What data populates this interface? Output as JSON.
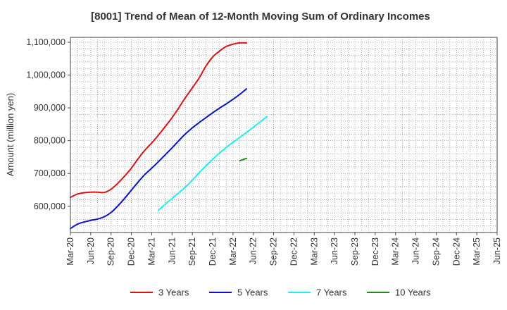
{
  "chart_data": {
    "type": "line",
    "title": "[8001]  Trend of Mean of 12-Month Moving Sum of Ordinary Incomes",
    "xlabel": "",
    "ylabel": "Amount (million yen)",
    "ylim": [
      520000,
      1115000
    ],
    "yticks": [
      600000,
      700000,
      800000,
      900000,
      1000000,
      1100000
    ],
    "ytick_labels": [
      "600,000",
      "700,000",
      "800,000",
      "900,000",
      "1,000,000",
      "1,100,000"
    ],
    "x_tick_labels": [
      "Mar-20",
      "Jun-20",
      "Sep-20",
      "Dec-20",
      "Mar-21",
      "Jun-21",
      "Sep-21",
      "Dec-21",
      "Mar-22",
      "Jun-22",
      "Sep-22",
      "Dec-22",
      "Mar-23",
      "Jun-23",
      "Sep-23",
      "Dec-23",
      "Mar-24",
      "Jun-24",
      "Sep-24",
      "Dec-24",
      "Mar-25",
      "Jun-25"
    ],
    "grid": true,
    "legend_position": "bottom",
    "series": [
      {
        "name": "3 Years",
        "color": "#dd1111",
        "start_index": 0,
        "values": [
          627000,
          637000,
          641000,
          643000,
          643000,
          642000,
          652000,
          670000,
          692000,
          716000,
          745000,
          771000,
          793000,
          817000,
          843000,
          870000,
          900000,
          932000,
          961000,
          991000,
          1027000,
          1055000,
          1073000,
          1087000,
          1094000,
          1098000,
          1098000
        ]
      },
      {
        "name": "5 Years",
        "color": "#0a10cc",
        "start_index": 0,
        "values": [
          532000,
          545000,
          552000,
          557000,
          561000,
          568000,
          581000,
          601000,
          624000,
          649000,
          674000,
          697000,
          716000,
          736000,
          757000,
          778000,
          800000,
          821000,
          839000,
          855000,
          870000,
          885000,
          899000,
          912000,
          926000,
          941000,
          958000
        ]
      },
      {
        "name": "7 Years",
        "color": "#22eeee",
        "start_index": 13,
        "values": [
          588000,
          606000,
          624000,
          641000,
          659000,
          680000,
          702000,
          723000,
          743000,
          762000,
          779000,
          795000,
          810000,
          825000,
          841000,
          857000,
          873000
        ]
      },
      {
        "name": "10 Years",
        "color": "#228822",
        "start_index": 25,
        "values": [
          739000,
          746000
        ]
      }
    ]
  }
}
